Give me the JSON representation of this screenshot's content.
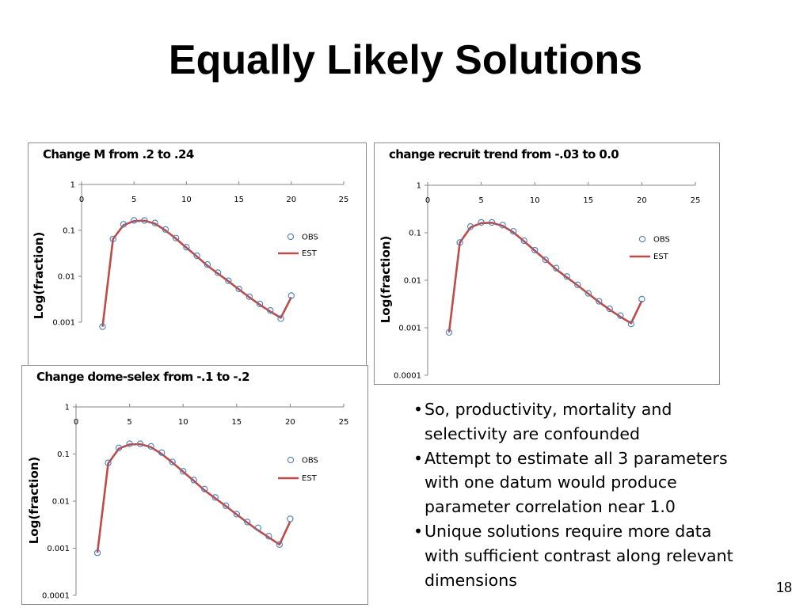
{
  "slide": {
    "title": "Equally Likely Solutions",
    "page_number": "18",
    "bullets": [
      "So, productivity, mortality and selectivity are confounded",
      "Attempt to estimate all 3 parameters with one datum would produce parameter correlation near 1.0",
      "Unique solutions require more data with sufficient contrast along relevant dimensions"
    ]
  },
  "colors": {
    "obs_marker": "#4a7ebb",
    "est_line": "#be4b48",
    "border": "#8c8c8c"
  },
  "chart_data": [
    {
      "type": "line",
      "title": "Change M from .2 to .24",
      "ylabel": "Log(fraction)",
      "xlabel": "",
      "xlim": [
        0,
        25
      ],
      "x_ticks": [
        "0",
        "5",
        "10",
        "15",
        "20",
        "25"
      ],
      "y_scale": "log",
      "ylim": [
        0.001,
        1
      ],
      "y_ticks": [
        "1",
        "0.1",
        "0.01",
        "0.001"
      ],
      "legend_position": "right",
      "series": [
        {
          "name": "OBS",
          "style": "marker",
          "x": [
            2,
            3,
            4,
            5,
            6,
            7,
            8,
            9,
            10,
            11,
            12,
            13,
            14,
            15,
            16,
            17,
            18,
            19,
            20
          ],
          "y": [
            0.0008,
            0.065,
            0.135,
            0.165,
            0.165,
            0.145,
            0.105,
            0.068,
            0.043,
            0.028,
            0.018,
            0.012,
            0.008,
            0.0053,
            0.0036,
            0.0025,
            0.0018,
            0.0012,
            0.0038
          ]
        },
        {
          "name": "EST",
          "style": "line",
          "x": [
            2,
            3,
            4,
            5,
            6,
            7,
            8,
            9,
            10,
            11,
            12,
            13,
            14,
            15,
            16,
            17,
            18,
            19,
            20
          ],
          "y": [
            0.0008,
            0.065,
            0.13,
            0.16,
            0.162,
            0.14,
            0.1,
            0.066,
            0.042,
            0.027,
            0.017,
            0.0115,
            0.0078,
            0.0052,
            0.0035,
            0.0024,
            0.0017,
            0.00125,
            0.0035
          ]
        }
      ]
    },
    {
      "type": "line",
      "title": "change recruit trend from -.03 to 0.0",
      "ylabel": "Log(fraction)",
      "xlabel": "",
      "xlim": [
        0,
        25
      ],
      "x_ticks": [
        "0",
        "5",
        "10",
        "15",
        "20",
        "25"
      ],
      "y_scale": "log",
      "ylim": [
        0.0001,
        1
      ],
      "y_ticks": [
        "1",
        "0.1",
        "0.01",
        "0.001",
        "0.0001"
      ],
      "legend_position": "right",
      "series": [
        {
          "name": "OBS",
          "style": "marker",
          "x": [
            2,
            3,
            4,
            5,
            6,
            7,
            8,
            9,
            10,
            11,
            12,
            13,
            14,
            15,
            16,
            17,
            18,
            19,
            20
          ],
          "y": [
            0.0008,
            0.062,
            0.135,
            0.165,
            0.165,
            0.145,
            0.107,
            0.068,
            0.043,
            0.027,
            0.018,
            0.012,
            0.008,
            0.0053,
            0.0036,
            0.0025,
            0.0018,
            0.0012,
            0.004
          ]
        },
        {
          "name": "EST",
          "style": "line",
          "x": [
            2,
            3,
            4,
            5,
            6,
            7,
            8,
            9,
            10,
            11,
            12,
            13,
            14,
            15,
            16,
            17,
            18,
            19,
            20
          ],
          "y": [
            0.0008,
            0.062,
            0.13,
            0.16,
            0.162,
            0.14,
            0.102,
            0.066,
            0.042,
            0.027,
            0.017,
            0.0115,
            0.0078,
            0.0052,
            0.0035,
            0.0024,
            0.0017,
            0.00125,
            0.0037
          ]
        }
      ]
    },
    {
      "type": "line",
      "title": "Change dome-selex from -.1 to -.2",
      "ylabel": "Log(fraction)",
      "xlabel": "",
      "xlim": [
        0,
        25
      ],
      "x_ticks": [
        "0",
        "5",
        "10",
        "15",
        "20",
        "25"
      ],
      "y_scale": "log",
      "ylim": [
        0.0001,
        1
      ],
      "y_ticks": [
        "1",
        "0.1",
        "0.01",
        "0.001",
        "0.0001"
      ],
      "legend_position": "right",
      "series": [
        {
          "name": "OBS",
          "style": "marker",
          "x": [
            2,
            3,
            4,
            5,
            6,
            7,
            8,
            9,
            10,
            11,
            12,
            13,
            14,
            15,
            16,
            17,
            18,
            19,
            20
          ],
          "y": [
            0.0008,
            0.065,
            0.135,
            0.165,
            0.165,
            0.145,
            0.107,
            0.068,
            0.043,
            0.028,
            0.018,
            0.012,
            0.008,
            0.0053,
            0.0036,
            0.0027,
            0.0018,
            0.0012,
            0.0042
          ]
        },
        {
          "name": "EST",
          "style": "line",
          "x": [
            2,
            3,
            4,
            5,
            6,
            7,
            8,
            9,
            10,
            11,
            12,
            13,
            14,
            15,
            16,
            17,
            18,
            19,
            20
          ],
          "y": [
            0.0008,
            0.063,
            0.13,
            0.16,
            0.162,
            0.14,
            0.1,
            0.066,
            0.042,
            0.027,
            0.017,
            0.0115,
            0.0078,
            0.0052,
            0.0035,
            0.0024,
            0.0017,
            0.0012,
            0.0037
          ]
        }
      ]
    }
  ]
}
